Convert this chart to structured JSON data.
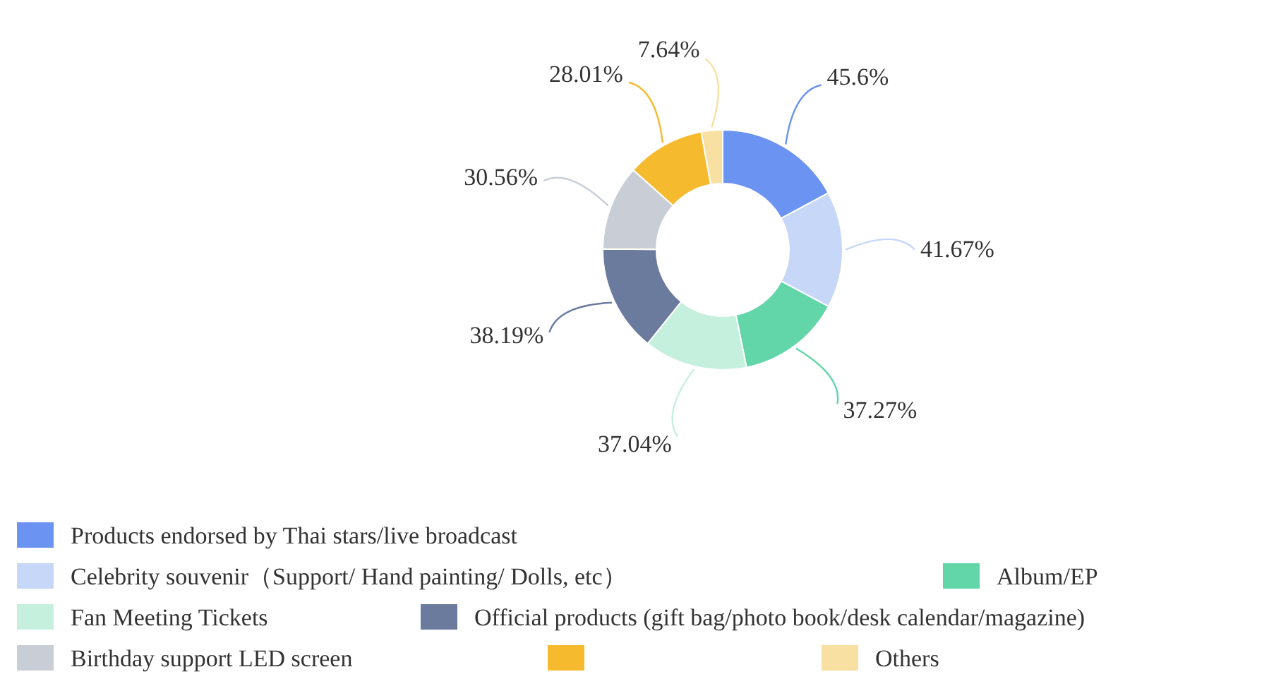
{
  "chart_data": {
    "type": "donut",
    "categories": [
      "Products endorsed by Thai stars/live broadcast",
      "Celebrity souvenir（Support/ Hand painting/ Dolls, etc）",
      "Album/EP",
      "Fan Meeting Tickets",
      "Official products (gift bag/photo book/desk calendar/magazine)",
      "Birthday support LED screen",
      null,
      "Others"
    ],
    "values": [
      45.6,
      41.67,
      37.27,
      37.04,
      38.19,
      30.56,
      28.01,
      7.64
    ],
    "value_labels": [
      "45.6%",
      "41.67%",
      "37.27%",
      "37.04%",
      "38.19%",
      "30.56%",
      "28.01%",
      "7.64%"
    ],
    "colors": [
      "#6b93f2",
      "#c6d7f7",
      "#62d6a9",
      "#c6f0de",
      "#6b7b9e",
      "#c9cdd6",
      "#f5ba2e",
      "#f8e0a2"
    ],
    "legend": "bottom"
  }
}
